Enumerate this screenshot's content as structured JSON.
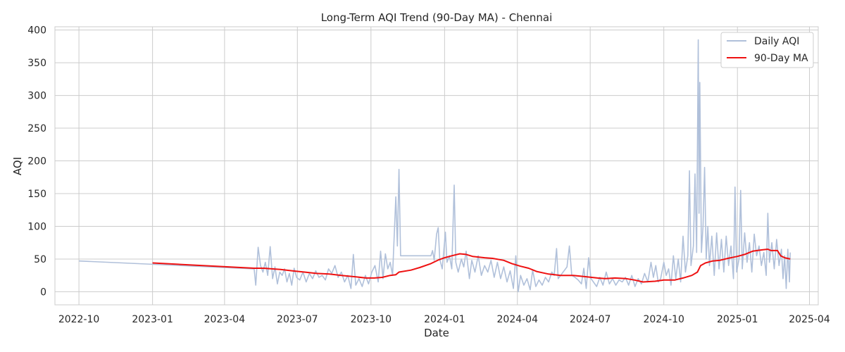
{
  "chart_data": {
    "type": "line",
    "title": "Long-Term AQI Trend (90-Day MA) - Chennai",
    "xlabel": "Date",
    "ylabel": "AQI",
    "x_type": "date",
    "xlim": [
      "2022-09-01",
      "2025-04-12"
    ],
    "ylim": [
      -20,
      405
    ],
    "x_ticks": [
      {
        "date": "2022-10-01",
        "label": "2022-10"
      },
      {
        "date": "2023-01-01",
        "label": "2023-01"
      },
      {
        "date": "2023-04-01",
        "label": "2023-04"
      },
      {
        "date": "2023-07-01",
        "label": "2023-07"
      },
      {
        "date": "2023-10-01",
        "label": "2023-10"
      },
      {
        "date": "2024-01-01",
        "label": "2024-01"
      },
      {
        "date": "2024-04-01",
        "label": "2024-04"
      },
      {
        "date": "2024-07-01",
        "label": "2024-07"
      },
      {
        "date": "2024-10-01",
        "label": "2024-10"
      },
      {
        "date": "2025-01-01",
        "label": "2025-01"
      },
      {
        "date": "2025-04-01",
        "label": "2025-04"
      }
    ],
    "y_ticks": [
      0,
      50,
      100,
      150,
      200,
      250,
      300,
      350,
      400
    ],
    "grid": true,
    "legend_position": "top-right",
    "series": [
      {
        "name": "Daily AQI",
        "color": "#b0c0da",
        "points": [
          [
            "2022-10-01",
            47
          ],
          [
            "2023-05-08",
            35
          ],
          [
            "2023-05-10",
            10
          ],
          [
            "2023-05-13",
            68
          ],
          [
            "2023-05-16",
            40
          ],
          [
            "2023-05-19",
            30
          ],
          [
            "2023-05-22",
            45
          ],
          [
            "2023-05-25",
            25
          ],
          [
            "2023-05-28",
            69
          ],
          [
            "2023-05-31",
            20
          ],
          [
            "2023-06-03",
            38
          ],
          [
            "2023-06-06",
            12
          ],
          [
            "2023-06-09",
            30
          ],
          [
            "2023-06-12",
            25
          ],
          [
            "2023-06-15",
            35
          ],
          [
            "2023-06-18",
            15
          ],
          [
            "2023-06-21",
            28
          ],
          [
            "2023-06-24",
            10
          ],
          [
            "2023-06-27",
            36
          ],
          [
            "2023-06-30",
            22
          ],
          [
            "2023-07-04",
            18
          ],
          [
            "2023-07-08",
            30
          ],
          [
            "2023-07-12",
            15
          ],
          [
            "2023-07-16",
            28
          ],
          [
            "2023-07-20",
            20
          ],
          [
            "2023-07-24",
            32
          ],
          [
            "2023-07-28",
            22
          ],
          [
            "2023-08-01",
            25
          ],
          [
            "2023-08-05",
            18
          ],
          [
            "2023-08-09",
            35
          ],
          [
            "2023-08-13",
            28
          ],
          [
            "2023-08-17",
            40
          ],
          [
            "2023-08-21",
            22
          ],
          [
            "2023-08-25",
            30
          ],
          [
            "2023-08-29",
            15
          ],
          [
            "2023-09-02",
            25
          ],
          [
            "2023-09-06",
            5
          ],
          [
            "2023-09-09",
            57
          ],
          [
            "2023-09-12",
            10
          ],
          [
            "2023-09-16",
            20
          ],
          [
            "2023-09-20",
            8
          ],
          [
            "2023-09-24",
            25
          ],
          [
            "2023-09-28",
            12
          ],
          [
            "2023-10-02",
            30
          ],
          [
            "2023-10-06",
            40
          ],
          [
            "2023-10-10",
            15
          ],
          [
            "2023-10-13",
            62
          ],
          [
            "2023-10-16",
            20
          ],
          [
            "2023-10-19",
            58
          ],
          [
            "2023-10-22",
            35
          ],
          [
            "2023-10-25",
            45
          ],
          [
            "2023-10-28",
            25
          ],
          [
            "2023-11-01",
            145
          ],
          [
            "2023-11-03",
            70
          ],
          [
            "2023-11-05",
            187
          ],
          [
            "2023-11-07",
            55
          ],
          [
            "2023-12-15",
            55
          ],
          [
            "2023-12-17",
            63
          ],
          [
            "2023-12-19",
            48
          ],
          [
            "2023-12-22",
            88
          ],
          [
            "2023-12-24",
            98
          ],
          [
            "2023-12-26",
            50
          ],
          [
            "2023-12-29",
            35
          ],
          [
            "2024-01-02",
            91
          ],
          [
            "2024-01-04",
            45
          ],
          [
            "2024-01-07",
            55
          ],
          [
            "2024-01-10",
            35
          ],
          [
            "2024-01-13",
            163
          ],
          [
            "2024-01-15",
            45
          ],
          [
            "2024-01-18",
            30
          ],
          [
            "2024-01-22",
            50
          ],
          [
            "2024-01-25",
            38
          ],
          [
            "2024-01-28",
            62
          ],
          [
            "2024-02-01",
            20
          ],
          [
            "2024-02-04",
            48
          ],
          [
            "2024-02-08",
            30
          ],
          [
            "2024-02-12",
            55
          ],
          [
            "2024-02-16",
            25
          ],
          [
            "2024-02-20",
            40
          ],
          [
            "2024-02-24",
            30
          ],
          [
            "2024-02-28",
            48
          ],
          [
            "2024-03-03",
            22
          ],
          [
            "2024-03-07",
            45
          ],
          [
            "2024-03-11",
            20
          ],
          [
            "2024-03-15",
            38
          ],
          [
            "2024-03-19",
            15
          ],
          [
            "2024-03-23",
            32
          ],
          [
            "2024-03-27",
            5
          ],
          [
            "2024-03-30",
            55
          ],
          [
            "2024-04-02",
            0
          ],
          [
            "2024-04-05",
            25
          ],
          [
            "2024-04-09",
            10
          ],
          [
            "2024-04-13",
            20
          ],
          [
            "2024-04-17",
            3
          ],
          [
            "2024-04-20",
            33
          ],
          [
            "2024-04-24",
            8
          ],
          [
            "2024-04-28",
            18
          ],
          [
            "2024-05-02",
            10
          ],
          [
            "2024-05-06",
            22
          ],
          [
            "2024-05-10",
            15
          ],
          [
            "2024-05-14",
            30
          ],
          [
            "2024-05-17",
            25
          ],
          [
            "2024-05-20",
            66
          ],
          [
            "2024-05-22",
            20
          ],
          [
            "2024-06-02",
            38
          ],
          [
            "2024-06-05",
            70
          ],
          [
            "2024-06-08",
            25
          ],
          [
            "2024-06-12",
            22
          ],
          [
            "2024-06-16",
            18
          ],
          [
            "2024-06-20",
            12
          ],
          [
            "2024-06-23",
            36
          ],
          [
            "2024-06-26",
            5
          ],
          [
            "2024-06-29",
            52
          ],
          [
            "2024-07-02",
            20
          ],
          [
            "2024-07-05",
            15
          ],
          [
            "2024-07-09",
            8
          ],
          [
            "2024-07-13",
            22
          ],
          [
            "2024-07-17",
            10
          ],
          [
            "2024-07-21",
            30
          ],
          [
            "2024-07-25",
            12
          ],
          [
            "2024-07-29",
            20
          ],
          [
            "2024-08-02",
            10
          ],
          [
            "2024-08-06",
            18
          ],
          [
            "2024-08-10",
            15
          ],
          [
            "2024-08-14",
            22
          ],
          [
            "2024-08-18",
            10
          ],
          [
            "2024-08-22",
            25
          ],
          [
            "2024-08-26",
            8
          ],
          [
            "2024-08-30",
            20
          ],
          [
            "2024-09-03",
            12
          ],
          [
            "2024-09-07",
            28
          ],
          [
            "2024-09-11",
            15
          ],
          [
            "2024-09-15",
            45
          ],
          [
            "2024-09-18",
            22
          ],
          [
            "2024-09-21",
            40
          ],
          [
            "2024-09-24",
            15
          ],
          [
            "2024-09-27",
            20
          ],
          [
            "2024-10-01",
            45
          ],
          [
            "2024-10-04",
            25
          ],
          [
            "2024-10-07",
            35
          ],
          [
            "2024-10-10",
            10
          ],
          [
            "2024-10-13",
            55
          ],
          [
            "2024-10-16",
            20
          ],
          [
            "2024-10-19",
            50
          ],
          [
            "2024-10-22",
            15
          ],
          [
            "2024-10-25",
            85
          ],
          [
            "2024-10-28",
            30
          ],
          [
            "2024-10-31",
            55
          ],
          [
            "2024-11-02",
            185
          ],
          [
            "2024-11-04",
            40
          ],
          [
            "2024-11-07",
            70
          ],
          [
            "2024-11-09",
            180
          ],
          [
            "2024-11-11",
            60
          ],
          [
            "2024-11-13",
            385
          ],
          [
            "2024-11-14",
            120
          ],
          [
            "2024-11-15",
            320
          ],
          [
            "2024-11-17",
            60
          ],
          [
            "2024-11-19",
            100
          ],
          [
            "2024-11-21",
            190
          ],
          [
            "2024-11-23",
            50
          ],
          [
            "2024-11-25",
            100
          ],
          [
            "2024-11-27",
            40
          ],
          [
            "2024-11-30",
            85
          ],
          [
            "2024-12-03",
            25
          ],
          [
            "2024-12-06",
            90
          ],
          [
            "2024-12-09",
            35
          ],
          [
            "2024-12-12",
            80
          ],
          [
            "2024-12-15",
            30
          ],
          [
            "2024-12-18",
            85
          ],
          [
            "2024-12-21",
            40
          ],
          [
            "2024-12-24",
            70
          ],
          [
            "2024-12-27",
            20
          ],
          [
            "2024-12-29",
            160
          ],
          [
            "2024-12-31",
            30
          ],
          [
            "2025-01-03",
            50
          ],
          [
            "2025-01-05",
            155
          ],
          [
            "2025-01-07",
            35
          ],
          [
            "2025-01-10",
            90
          ],
          [
            "2025-01-13",
            45
          ],
          [
            "2025-01-16",
            75
          ],
          [
            "2025-01-19",
            30
          ],
          [
            "2025-01-22",
            88
          ],
          [
            "2025-01-25",
            55
          ],
          [
            "2025-01-28",
            70
          ],
          [
            "2025-01-31",
            40
          ],
          [
            "2025-02-03",
            60
          ],
          [
            "2025-02-06",
            25
          ],
          [
            "2025-02-08",
            120
          ],
          [
            "2025-02-10",
            45
          ],
          [
            "2025-02-13",
            75
          ],
          [
            "2025-02-16",
            35
          ],
          [
            "2025-02-19",
            80
          ],
          [
            "2025-02-22",
            40
          ],
          [
            "2025-02-25",
            65
          ],
          [
            "2025-02-27",
            20
          ],
          [
            "2025-03-01",
            55
          ],
          [
            "2025-03-03",
            5
          ],
          [
            "2025-03-05",
            65
          ],
          [
            "2025-03-07",
            15
          ],
          [
            "2025-03-08",
            60
          ]
        ]
      },
      {
        "name": "90-Day MA",
        "color": "#ee1111",
        "points": [
          [
            "2023-01-01",
            44
          ],
          [
            "2023-05-08",
            36
          ],
          [
            "2023-05-20",
            36
          ],
          [
            "2023-06-10",
            34
          ],
          [
            "2023-06-25",
            32
          ],
          [
            "2023-07-10",
            30
          ],
          [
            "2023-07-25",
            28
          ],
          [
            "2023-08-10",
            27
          ],
          [
            "2023-08-25",
            25
          ],
          [
            "2023-09-10",
            23
          ],
          [
            "2023-09-25",
            21
          ],
          [
            "2023-10-05",
            21
          ],
          [
            "2023-10-15",
            22
          ],
          [
            "2023-10-25",
            25
          ],
          [
            "2023-11-01",
            26
          ],
          [
            "2023-11-05",
            30
          ],
          [
            "2023-11-20",
            33
          ],
          [
            "2023-12-01",
            37
          ],
          [
            "2023-12-15",
            43
          ],
          [
            "2023-12-25",
            49
          ],
          [
            "2024-01-01",
            52
          ],
          [
            "2024-01-10",
            55
          ],
          [
            "2024-01-20",
            58
          ],
          [
            "2024-01-28",
            57
          ],
          [
            "2024-02-05",
            54
          ],
          [
            "2024-02-20",
            52
          ],
          [
            "2024-03-01",
            51
          ],
          [
            "2024-03-15",
            48
          ],
          [
            "2024-03-25",
            43
          ],
          [
            "2024-04-05",
            39
          ],
          [
            "2024-04-15",
            36
          ],
          [
            "2024-04-25",
            31
          ],
          [
            "2024-05-10",
            27
          ],
          [
            "2024-05-25",
            25
          ],
          [
            "2024-06-10",
            25
          ],
          [
            "2024-06-25",
            23
          ],
          [
            "2024-07-10",
            21
          ],
          [
            "2024-07-20",
            20
          ],
          [
            "2024-08-01",
            21
          ],
          [
            "2024-08-15",
            20
          ],
          [
            "2024-08-25",
            18
          ],
          [
            "2024-09-05",
            15
          ],
          [
            "2024-09-20",
            16
          ],
          [
            "2024-10-01",
            18
          ],
          [
            "2024-10-15",
            18
          ],
          [
            "2024-10-25",
            21
          ],
          [
            "2024-11-05",
            25
          ],
          [
            "2024-11-12",
            30
          ],
          [
            "2024-11-16",
            40
          ],
          [
            "2024-11-22",
            44
          ],
          [
            "2024-12-01",
            47
          ],
          [
            "2024-12-10",
            48
          ],
          [
            "2024-12-20",
            51
          ],
          [
            "2025-01-01",
            54
          ],
          [
            "2025-01-10",
            57
          ],
          [
            "2025-01-20",
            62
          ],
          [
            "2025-02-01",
            64
          ],
          [
            "2025-02-08",
            65
          ],
          [
            "2025-02-12",
            63
          ],
          [
            "2025-02-20",
            63
          ],
          [
            "2025-02-24",
            55
          ],
          [
            "2025-03-01",
            52
          ],
          [
            "2025-03-08",
            50
          ]
        ]
      }
    ]
  }
}
